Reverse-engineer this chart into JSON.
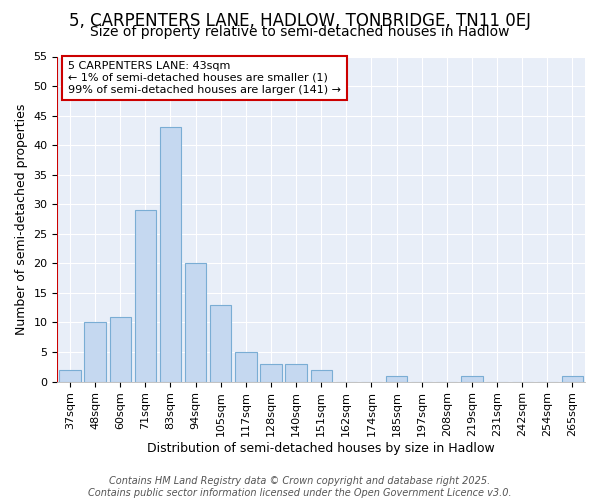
{
  "title1": "5, CARPENTERS LANE, HADLOW, TONBRIDGE, TN11 0EJ",
  "title2": "Size of property relative to semi-detached houses in Hadlow",
  "xlabel": "Distribution of semi-detached houses by size in Hadlow",
  "ylabel": "Number of semi-detached properties",
  "categories": [
    "37sqm",
    "48sqm",
    "60sqm",
    "71sqm",
    "83sqm",
    "94sqm",
    "105sqm",
    "117sqm",
    "128sqm",
    "140sqm",
    "151sqm",
    "162sqm",
    "174sqm",
    "185sqm",
    "197sqm",
    "208sqm",
    "219sqm",
    "231sqm",
    "242sqm",
    "254sqm",
    "265sqm"
  ],
  "values": [
    2,
    10,
    11,
    29,
    43,
    20,
    13,
    5,
    3,
    3,
    2,
    0,
    0,
    1,
    0,
    0,
    1,
    0,
    0,
    0,
    1
  ],
  "bar_color": "#c5d8f0",
  "bar_edge_color": "#7aadd4",
  "fig_background_color": "#ffffff",
  "axes_background_color": "#e8eef8",
  "grid_color": "#ffffff",
  "annotation_text": "5 CARPENTERS LANE: 43sqm\n← 1% of semi-detached houses are smaller (1)\n99% of semi-detached houses are larger (141) →",
  "annotation_box_facecolor": "#ffffff",
  "annotation_box_edgecolor": "#cc0000",
  "red_line_color": "#cc0000",
  "ylim": [
    0,
    55
  ],
  "yticks": [
    0,
    5,
    10,
    15,
    20,
    25,
    30,
    35,
    40,
    45,
    50,
    55
  ],
  "footer": "Contains HM Land Registry data © Crown copyright and database right 2025.\nContains public sector information licensed under the Open Government Licence v3.0.",
  "title1_fontsize": 12,
  "title2_fontsize": 10,
  "xlabel_fontsize": 9,
  "ylabel_fontsize": 9,
  "tick_fontsize": 8,
  "annot_fontsize": 8,
  "footer_fontsize": 7
}
